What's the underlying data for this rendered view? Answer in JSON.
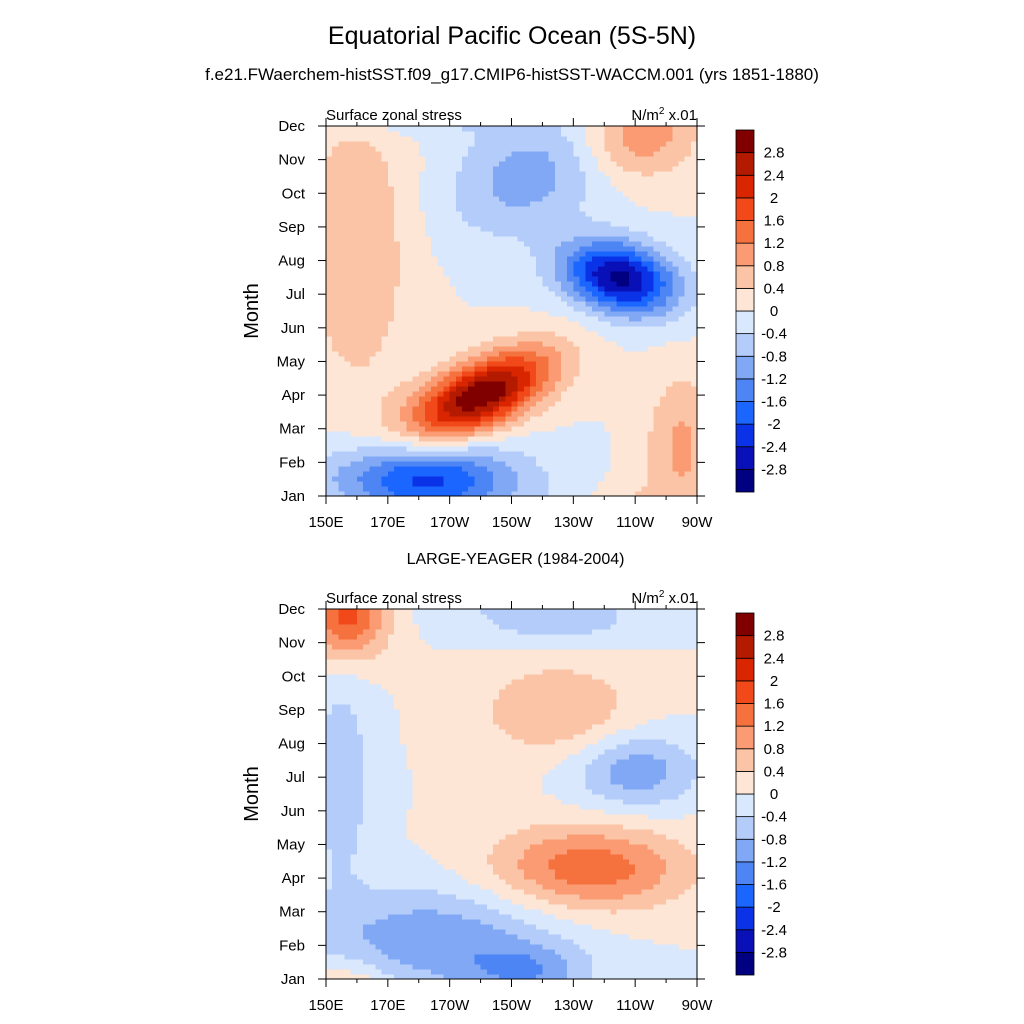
{
  "title": "Equatorial Pacific Ocean (5S-5N)",
  "subtitle": "f.e21.FWaerchem-histSST.f09_g17.CMIP6-histSST-WACCM.001 (yrs 1851-1880)",
  "colors": {
    "scale": [
      "#000080",
      "#0a10b8",
      "#0a33e8",
      "#1a66ff",
      "#4d85f5",
      "#80a8f5",
      "#b3ccfa",
      "#d9e8fc",
      "#fde6d6",
      "#fcc4a6",
      "#fa9b73",
      "#f5723f",
      "#f2491a",
      "#d92600",
      "#b31a00",
      "#800000"
    ]
  },
  "chart_data": [
    {
      "type": "heatmap",
      "name": "panel-model",
      "panel_title": "",
      "left_label": "Surface zonal stress",
      "right_label": "N/m",
      "right_label_sup": "2",
      "right_label_suffix": " x.01",
      "ylabel": "Month",
      "y_ticks": [
        "Jan",
        "Feb",
        "Mar",
        "Apr",
        "May",
        "Jun",
        "Jul",
        "Aug",
        "Sep",
        "Oct",
        "Nov",
        "Dec"
      ],
      "x_ticks": [
        "150E",
        "170E",
        "170W",
        "150W",
        "130W",
        "110W",
        "90W"
      ],
      "xlim": [
        150,
        270
      ],
      "colorbar_labels": [
        "-2.8",
        "-2.4",
        "-2",
        "-1.6",
        "-1.2",
        "-0.8",
        "-0.4",
        "0",
        "0.4",
        "0.8",
        "1.2",
        "1.6",
        "2",
        "2.4",
        "2.8"
      ],
      "levels": [
        -2.8,
        -2.4,
        -2.0,
        -1.6,
        -1.2,
        -0.8,
        -0.4,
        0,
        0.4,
        0.8,
        1.2,
        1.6,
        2.0,
        2.4,
        2.8
      ],
      "features": [
        {
          "lon": 200,
          "month": 3.0,
          "amp": 3.2,
          "slon": 16,
          "smon": 0.75,
          "tilt": 0.035
        },
        {
          "lon": 245,
          "month": 6.5,
          "amp": -2.9,
          "slon": 13,
          "smon": 0.75,
          "tilt": -0.015
        },
        {
          "lon": 180,
          "month": 0.5,
          "amp": -2.2,
          "slon": 22,
          "smon": 0.8,
          "tilt": 0.0
        },
        {
          "lon": 160,
          "month": 7.5,
          "amp": 0.8,
          "slon": 12,
          "smon": 3.0,
          "tilt": 0.0
        },
        {
          "lon": 250,
          "month": 10.7,
          "amp": 1.1,
          "slon": 12,
          "smon": 0.9,
          "tilt": 0.0
        },
        {
          "lon": 265,
          "month": 1.5,
          "amp": 0.9,
          "slon": 8,
          "smon": 1.5,
          "tilt": 0.0
        },
        {
          "lon": 215,
          "month": 9.5,
          "amp": -1.0,
          "slon": 18,
          "smon": 1.2,
          "tilt": 0.02
        }
      ]
    },
    {
      "type": "heatmap",
      "name": "panel-obs",
      "panel_title": "LARGE-YEAGER (1984-2004)",
      "left_label": "Surface zonal stress",
      "right_label": "N/m",
      "right_label_sup": "2",
      "right_label_suffix": " x.01",
      "ylabel": "Month",
      "y_ticks": [
        "Jan",
        "Feb",
        "Mar",
        "Apr",
        "May",
        "Jun",
        "Jul",
        "Aug",
        "Sep",
        "Oct",
        "Nov",
        "Dec"
      ],
      "x_ticks": [
        "150E",
        "170E",
        "170W",
        "150W",
        "130W",
        "110W",
        "90W"
      ],
      "xlim": [
        150,
        270
      ],
      "colorbar_labels": [
        "-2.8",
        "-2.4",
        "-2",
        "-1.6",
        "-1.2",
        "-0.8",
        "-0.4",
        "0",
        "0.4",
        "0.8",
        "1.2",
        "1.6",
        "2",
        "2.4",
        "2.8"
      ],
      "levels": [
        -2.8,
        -2.4,
        -2.0,
        -1.6,
        -1.2,
        -0.8,
        -0.4,
        0,
        0.4,
        0.8,
        1.2,
        1.6,
        2.0,
        2.4,
        2.8
      ],
      "features": [
        {
          "lon": 235,
          "month": 3.3,
          "amp": 1.5,
          "slon": 22,
          "smon": 0.9,
          "tilt": 0.0
        },
        {
          "lon": 157,
          "month": 10.8,
          "amp": 1.8,
          "slon": 9,
          "smon": 0.9,
          "tilt": 0.0
        },
        {
          "lon": 225,
          "month": 8.0,
          "amp": 0.8,
          "slon": 18,
          "smon": 1.0,
          "tilt": 0.0
        },
        {
          "lon": 185,
          "month": 1.2,
          "amp": -1.1,
          "slon": 28,
          "smon": 1.1,
          "tilt": 0.0
        },
        {
          "lon": 250,
          "month": 6.2,
          "amp": -1.1,
          "slon": 14,
          "smon": 0.8,
          "tilt": 0.0
        },
        {
          "lon": 215,
          "month": 0.2,
          "amp": -0.9,
          "slon": 14,
          "smon": 0.6,
          "tilt": 0.0
        },
        {
          "lon": 155,
          "month": 6.0,
          "amp": -0.7,
          "slon": 7,
          "smon": 2.2,
          "tilt": 0.0
        },
        {
          "lon": 225,
          "month": 10.7,
          "amp": -0.7,
          "slon": 18,
          "smon": 0.5,
          "tilt": 0.0
        }
      ]
    }
  ]
}
